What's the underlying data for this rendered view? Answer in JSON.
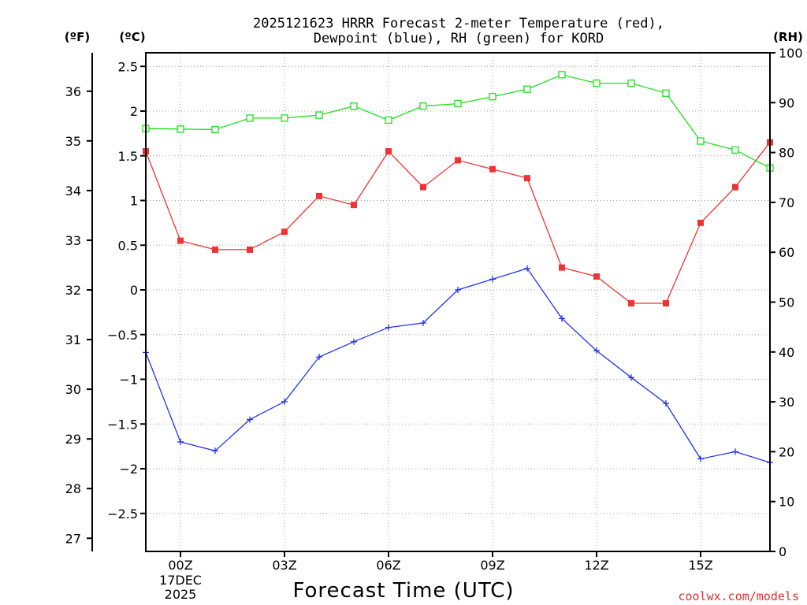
{
  "chart_data": {
    "type": "line",
    "title_line1": "2025121623 HRRR Forecast 2-meter Temperature (red),",
    "title_line2": "Dewpoint (blue), RH (green) for KORD",
    "xlabel": "Forecast Time (UTC)",
    "credit": "coolwx.com/models",
    "units": {
      "fahrenheit": "(ºF)",
      "celsius": "(ºC)",
      "rh": "(RH)"
    },
    "x_hours": [
      23,
      24,
      25,
      26,
      27,
      28,
      29,
      30,
      31,
      32,
      33,
      34,
      35,
      36,
      37,
      38,
      39,
      40,
      41
    ],
    "x_ticks": [
      {
        "hour": 24,
        "label": "00Z",
        "sub1": "17DEC",
        "sub2": "2025"
      },
      {
        "hour": 27,
        "label": "03Z"
      },
      {
        "hour": 30,
        "label": "06Z"
      },
      {
        "hour": 33,
        "label": "09Z"
      },
      {
        "hour": 36,
        "label": "12Z"
      },
      {
        "hour": 39,
        "label": "15Z"
      }
    ],
    "xlim": [
      23,
      41
    ],
    "celsius_axis": {
      "ylim": [
        -2.8,
        2.8
      ],
      "ticks": [
        2.5,
        2,
        1.5,
        1,
        0.5,
        0,
        -0.5,
        -1,
        -1.5,
        -2,
        -2.5
      ],
      "tick_labels": [
        "2.5",
        "2",
        "1.5",
        "1",
        "0.5",
        "0",
        "−0.5",
        "−1",
        "−1.5",
        "−2",
        "−2.5"
      ]
    },
    "fahrenheit_axis": {
      "ticks": [
        27,
        28,
        29,
        30,
        31,
        32,
        33,
        34,
        35,
        36
      ],
      "tick_labels": [
        "27",
        "28",
        "29",
        "30",
        "31",
        "32",
        "33",
        "34",
        "35",
        "36"
      ]
    },
    "rh_axis": {
      "ylim": [
        0,
        100
      ],
      "ticks": [
        0,
        10,
        20,
        30,
        40,
        50,
        60,
        70,
        80,
        90,
        100
      ],
      "tick_labels": [
        "0",
        "10",
        "20",
        "30",
        "40",
        "50",
        "60",
        "70",
        "80",
        "90",
        "100"
      ]
    },
    "series": [
      {
        "name": "Temperature",
        "color": "#ee3333",
        "marker": "filled-square",
        "axis": "celsius",
        "values": [
          1.55,
          0.55,
          0.45,
          0.45,
          0.65,
          1.05,
          0.95,
          1.55,
          1.15,
          1.45,
          1.35,
          1.25,
          0.25,
          0.15,
          -0.15,
          -0.15,
          0.75,
          1.15,
          1.65
        ]
      },
      {
        "name": "Dewpoint",
        "color": "#2233ee",
        "marker": "plus",
        "axis": "celsius",
        "values": [
          -0.7,
          -1.7,
          -1.8,
          -1.45,
          -1.25,
          -0.75,
          -0.58,
          -0.42,
          -0.37,
          0.0,
          0.12,
          0.24,
          -0.32,
          -0.68,
          -0.98,
          -1.27,
          -1.89,
          -1.81,
          -1.93
        ]
      },
      {
        "name": "RH",
        "color": "#22dd22",
        "marker": "open-square",
        "axis": "rh",
        "values": [
          84.8,
          84.7,
          84.6,
          86.9,
          86.9,
          87.5,
          89.3,
          86.5,
          89.3,
          89.8,
          91.2,
          92.7,
          95.6,
          93.9,
          93.9,
          91.9,
          82.3,
          80.5,
          76.9
        ]
      }
    ]
  }
}
